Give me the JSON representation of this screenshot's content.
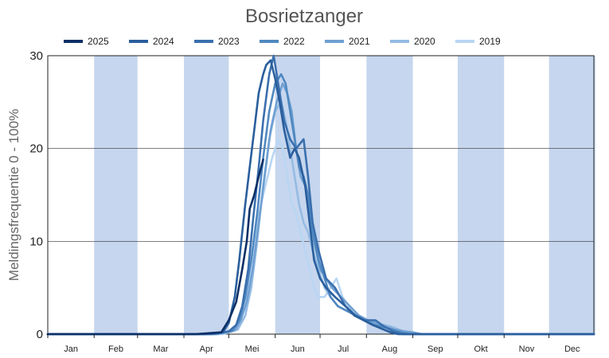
{
  "chart_data": {
    "type": "line",
    "title": "Bosrietzanger",
    "ylabel": "Meldingsfrequentie 0 - 100%",
    "xlabel": "",
    "ylim": [
      0,
      30
    ],
    "yticks": [
      "0",
      "10",
      "20",
      "30"
    ],
    "months": [
      "Jan",
      "Feb",
      "Mar",
      "Apr",
      "Mei",
      "Jun",
      "Jul",
      "Aug",
      "Sep",
      "Okt",
      "Nov",
      "Dec"
    ],
    "shaded_months": [
      "Feb",
      "Apr",
      "Jun",
      "Aug",
      "Okt",
      "Dec"
    ],
    "shade_color": "#c6d6ee",
    "grid": true,
    "legend_position": "top",
    "series": [
      {
        "name": "2025",
        "color": "#0b2f66",
        "points": [
          [
            1,
            0
          ],
          [
            100,
            0
          ],
          [
            117,
            0.2
          ],
          [
            122,
            1.5
          ],
          [
            127,
            3.5
          ],
          [
            131,
            7
          ],
          [
            134,
            10
          ],
          [
            136,
            13.5
          ],
          [
            139,
            15
          ],
          [
            142,
            17
          ],
          [
            145,
            18.8
          ]
        ]
      },
      {
        "name": "2024",
        "color": "#2a5e9c",
        "points": [
          [
            1,
            0
          ],
          [
            106,
            0
          ],
          [
            118,
            0.2
          ],
          [
            122,
            1.2
          ],
          [
            126,
            4
          ],
          [
            129,
            8
          ],
          [
            131,
            11
          ],
          [
            133,
            14
          ],
          [
            136,
            18
          ],
          [
            139,
            22
          ],
          [
            142,
            26
          ],
          [
            145,
            28
          ],
          [
            147,
            29
          ],
          [
            150,
            29.5
          ],
          [
            153,
            27.5
          ],
          [
            156,
            25
          ],
          [
            159,
            22
          ],
          [
            163,
            19
          ],
          [
            166,
            20
          ],
          [
            169,
            19
          ],
          [
            173,
            16
          ],
          [
            176,
            12
          ],
          [
            179,
            8
          ],
          [
            183,
            6
          ],
          [
            187,
            5
          ],
          [
            193,
            4
          ],
          [
            200,
            3
          ],
          [
            206,
            2
          ],
          [
            212,
            1.5
          ],
          [
            218,
            1
          ],
          [
            224,
            0.6
          ],
          [
            230,
            0.2
          ],
          [
            235,
            0
          ],
          [
            366,
            0
          ]
        ]
      },
      {
        "name": "2023",
        "color": "#3a6fae",
        "points": [
          [
            1,
            0
          ],
          [
            110,
            0
          ],
          [
            122,
            0.3
          ],
          [
            127,
            1
          ],
          [
            131,
            3
          ],
          [
            135,
            7
          ],
          [
            138,
            12
          ],
          [
            142,
            18
          ],
          [
            145,
            23
          ],
          [
            149,
            28
          ],
          [
            152,
            30
          ],
          [
            155,
            27
          ],
          [
            159,
            23
          ],
          [
            163,
            21
          ],
          [
            167,
            20
          ],
          [
            172,
            21
          ],
          [
            175,
            17
          ],
          [
            178,
            12
          ],
          [
            182,
            9
          ],
          [
            187,
            6
          ],
          [
            193,
            5
          ],
          [
            200,
            3
          ],
          [
            207,
            2
          ],
          [
            213,
            1.5
          ],
          [
            220,
            1.5
          ],
          [
            226,
            0.8
          ],
          [
            232,
            0.3
          ],
          [
            238,
            0
          ],
          [
            366,
            0
          ]
        ]
      },
      {
        "name": "2022",
        "color": "#5088c0",
        "points": [
          [
            1,
            0
          ],
          [
            112,
            0
          ],
          [
            124,
            0.3
          ],
          [
            129,
            1.5
          ],
          [
            133,
            4
          ],
          [
            137,
            8
          ],
          [
            141,
            13
          ],
          [
            145,
            19
          ],
          [
            149,
            24
          ],
          [
            153,
            27
          ],
          [
            157,
            28
          ],
          [
            160,
            27
          ],
          [
            163,
            24
          ],
          [
            166,
            21
          ],
          [
            169,
            18
          ],
          [
            172,
            17
          ],
          [
            175,
            15
          ],
          [
            178,
            11
          ],
          [
            182,
            8
          ],
          [
            186,
            6
          ],
          [
            190,
            4
          ],
          [
            195,
            3
          ],
          [
            201,
            2.5
          ],
          [
            207,
            2
          ],
          [
            213,
            1.5
          ],
          [
            219,
            1
          ],
          [
            225,
            0.8
          ],
          [
            231,
            0.5
          ],
          [
            237,
            0.2
          ],
          [
            243,
            0
          ],
          [
            366,
            0
          ]
        ]
      },
      {
        "name": "2021",
        "color": "#6fa0d2",
        "points": [
          [
            1,
            0
          ],
          [
            114,
            0
          ],
          [
            126,
            0.4
          ],
          [
            130,
            1.5
          ],
          [
            134,
            3.5
          ],
          [
            138,
            7
          ],
          [
            142,
            12
          ],
          [
            146,
            17
          ],
          [
            150,
            22
          ],
          [
            154,
            25
          ],
          [
            158,
            27
          ],
          [
            161,
            26
          ],
          [
            164,
            24
          ],
          [
            167,
            20
          ],
          [
            170,
            17
          ],
          [
            173,
            16
          ],
          [
            176,
            13
          ],
          [
            179,
            10
          ],
          [
            183,
            7
          ],
          [
            187,
            6
          ],
          [
            191,
            5
          ],
          [
            197,
            4
          ],
          [
            203,
            3
          ],
          [
            209,
            2
          ],
          [
            215,
            1.5
          ],
          [
            221,
            1.2
          ],
          [
            227,
            0.8
          ],
          [
            233,
            0.5
          ],
          [
            239,
            0.3
          ],
          [
            245,
            0.2
          ],
          [
            251,
            0
          ],
          [
            366,
            0
          ]
        ]
      },
      {
        "name": "2020",
        "color": "#95bbe3",
        "points": [
          [
            1,
            0
          ],
          [
            115,
            0
          ],
          [
            128,
            0.5
          ],
          [
            133,
            2
          ],
          [
            137,
            5
          ],
          [
            141,
            10
          ],
          [
            145,
            16
          ],
          [
            149,
            21
          ],
          [
            153,
            24
          ],
          [
            157,
            25
          ],
          [
            160,
            23
          ],
          [
            163,
            20
          ],
          [
            166,
            17
          ],
          [
            169,
            14
          ],
          [
            172,
            12
          ],
          [
            175,
            11
          ],
          [
            178,
            9
          ],
          [
            182,
            7
          ],
          [
            186,
            5
          ],
          [
            190,
            4
          ],
          [
            195,
            3
          ],
          [
            201,
            2.5
          ],
          [
            207,
            2
          ],
          [
            213,
            1.5
          ],
          [
            219,
            1.2
          ],
          [
            225,
            1
          ],
          [
            231,
            0.8
          ],
          [
            237,
            0.4
          ],
          [
            243,
            0.2
          ],
          [
            248,
            0
          ],
          [
            366,
            0
          ]
        ]
      },
      {
        "name": "2019",
        "color": "#b9d6f3",
        "points": [
          [
            1,
            0
          ],
          [
            118,
            0
          ],
          [
            128,
            0.5
          ],
          [
            133,
            3
          ],
          [
            137,
            7
          ],
          [
            141,
            12
          ],
          [
            145,
            15
          ],
          [
            148,
            17
          ],
          [
            151,
            19
          ],
          [
            155,
            21
          ],
          [
            158,
            20
          ],
          [
            161,
            17
          ],
          [
            164,
            14
          ],
          [
            167,
            13
          ],
          [
            170,
            11
          ],
          [
            173,
            9
          ],
          [
            176,
            7
          ],
          [
            179,
            5
          ],
          [
            182,
            4
          ],
          [
            186,
            4
          ],
          [
            190,
            5
          ],
          [
            194,
            6
          ],
          [
            198,
            4
          ],
          [
            202,
            3
          ],
          [
            206,
            2
          ],
          [
            212,
            1.5
          ],
          [
            218,
            1
          ],
          [
            224,
            0.6
          ],
          [
            230,
            0.3
          ],
          [
            236,
            0
          ],
          [
            366,
            0
          ]
        ]
      }
    ]
  }
}
